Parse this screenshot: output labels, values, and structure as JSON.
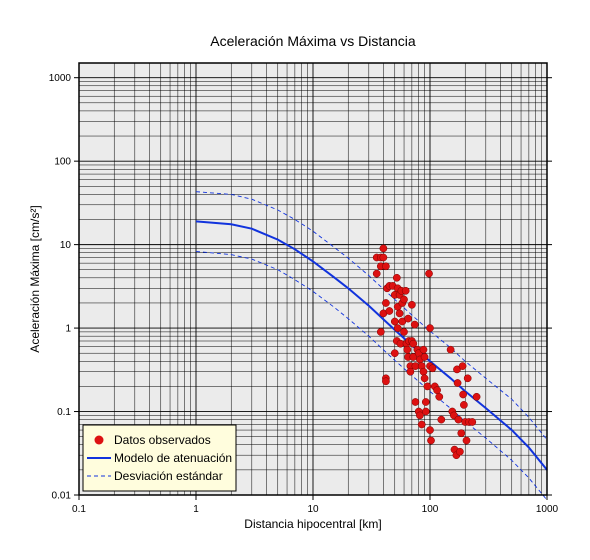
{
  "chart_data": {
    "type": "scatter",
    "title": "Aceleración Máxima vs Distancia",
    "xlabel": "Distancia hipocentral [km]",
    "ylabel": "Aceleración Máxima [cm/s²]",
    "xscale": "log",
    "yscale": "log",
    "xlim": [
      0.1,
      1000
    ],
    "ylim": [
      0.01,
      1500
    ],
    "grid": true,
    "x_ticks": [
      "0.1",
      "1",
      "10",
      "100",
      "1000"
    ],
    "y_ticks": [
      "0.01",
      "0.1",
      "1",
      "10",
      "100",
      "1000"
    ],
    "legend_position": "bottom-left",
    "series": [
      {
        "name": "Datos observados",
        "kind": "scatter",
        "color": "#dd1111",
        "points": [
          [
            35,
            4.5
          ],
          [
            35,
            7
          ],
          [
            38,
            7
          ],
          [
            38,
            5.5
          ],
          [
            40,
            9
          ],
          [
            40,
            7
          ],
          [
            42,
            5.5
          ],
          [
            38,
            0.9
          ],
          [
            40,
            1.5
          ],
          [
            42,
            2.0
          ],
          [
            43,
            3.0
          ],
          [
            45,
            3.2
          ],
          [
            45,
            1.6
          ],
          [
            42,
            0.25
          ],
          [
            42,
            0.23
          ],
          [
            48,
            3.2
          ],
          [
            50,
            2.5
          ],
          [
            50,
            1.2
          ],
          [
            50,
            0.5
          ],
          [
            52,
            4.0
          ],
          [
            53,
            3.0
          ],
          [
            53,
            1.8
          ],
          [
            53,
            1.0
          ],
          [
            52,
            0.7
          ],
          [
            55,
            2.5
          ],
          [
            55,
            1.5
          ],
          [
            56,
            0.65
          ],
          [
            57,
            2.8
          ],
          [
            58,
            2.0
          ],
          [
            58,
            1.2
          ],
          [
            60,
            2.2
          ],
          [
            60,
            0.9
          ],
          [
            62,
            2.8
          ],
          [
            63,
            0.65
          ],
          [
            64,
            0.55
          ],
          [
            65,
            1.3
          ],
          [
            65,
            0.45
          ],
          [
            66,
            0.7
          ],
          [
            68,
            0.35
          ],
          [
            68,
            0.3
          ],
          [
            70,
            1.9
          ],
          [
            70,
            0.7
          ],
          [
            72,
            0.65
          ],
          [
            72,
            0.45
          ],
          [
            74,
            1.1
          ],
          [
            75,
            0.35
          ],
          [
            75,
            0.13
          ],
          [
            78,
            0.55
          ],
          [
            80,
            0.5
          ],
          [
            80,
            0.1
          ],
          [
            82,
            0.42
          ],
          [
            82,
            0.09
          ],
          [
            85,
            0.35
          ],
          [
            85,
            0.07
          ],
          [
            88,
            0.55
          ],
          [
            88,
            0.3
          ],
          [
            90,
            0.45
          ],
          [
            90,
            0.25
          ],
          [
            92,
            0.13
          ],
          [
            92,
            0.1
          ],
          [
            95,
            0.2
          ],
          [
            98,
            4.5
          ],
          [
            100,
            1.0
          ],
          [
            100,
            0.35
          ],
          [
            100,
            0.06
          ],
          [
            102,
            0.045
          ],
          [
            105,
            0.33
          ],
          [
            110,
            0.2
          ],
          [
            115,
            0.18
          ],
          [
            120,
            0.15
          ],
          [
            125,
            0.08
          ],
          [
            150,
            0.55
          ],
          [
            155,
            0.1
          ],
          [
            160,
            0.09
          ],
          [
            162,
            0.035
          ],
          [
            168,
            0.03
          ],
          [
            170,
            0.32
          ],
          [
            172,
            0.22
          ],
          [
            175,
            0.08
          ],
          [
            180,
            0.033
          ],
          [
            185,
            0.055
          ],
          [
            190,
            0.35
          ],
          [
            192,
            0.16
          ],
          [
            195,
            0.12
          ],
          [
            200,
            0.075
          ],
          [
            205,
            0.045
          ],
          [
            210,
            0.25
          ],
          [
            215,
            0.075
          ],
          [
            230,
            0.075
          ],
          [
            250,
            0.15
          ]
        ]
      },
      {
        "name": "Modelo de atenuación",
        "kind": "line",
        "color": "#1133dd",
        "x": [
          1,
          2,
          3,
          5,
          7,
          10,
          15,
          20,
          30,
          50,
          70,
          100,
          150,
          200,
          300,
          500,
          700,
          1000
        ],
        "y": [
          19,
          17.5,
          15.5,
          11.5,
          8.8,
          6.3,
          4.1,
          3.0,
          1.85,
          0.95,
          0.62,
          0.4,
          0.25,
          0.175,
          0.11,
          0.06,
          0.037,
          0.02
        ]
      },
      {
        "name": "Desviación estándar",
        "kind": "dashed",
        "color": "#1133dd",
        "x": [
          1,
          2,
          3,
          5,
          7,
          10,
          15,
          20,
          30,
          50,
          70,
          100,
          150,
          200,
          300,
          500,
          700,
          1000
        ],
        "y": [
          43,
          40,
          35,
          26,
          20,
          14.5,
          9.4,
          6.9,
          4.25,
          2.2,
          1.43,
          0.92,
          0.58,
          0.4,
          0.25,
          0.14,
          0.085,
          0.046
        ]
      },
      {
        "name": "",
        "kind": "dashed",
        "color": "#1133dd",
        "x": [
          1,
          2,
          3,
          5,
          7,
          10,
          15,
          20,
          30,
          50,
          70,
          100,
          150,
          200,
          300,
          500,
          700,
          1000
        ],
        "y": [
          8.3,
          7.6,
          6.7,
          5.0,
          3.8,
          2.75,
          1.8,
          1.3,
          0.8,
          0.41,
          0.27,
          0.174,
          0.109,
          0.076,
          0.048,
          0.026,
          0.016,
          0.0087
        ]
      }
    ]
  }
}
